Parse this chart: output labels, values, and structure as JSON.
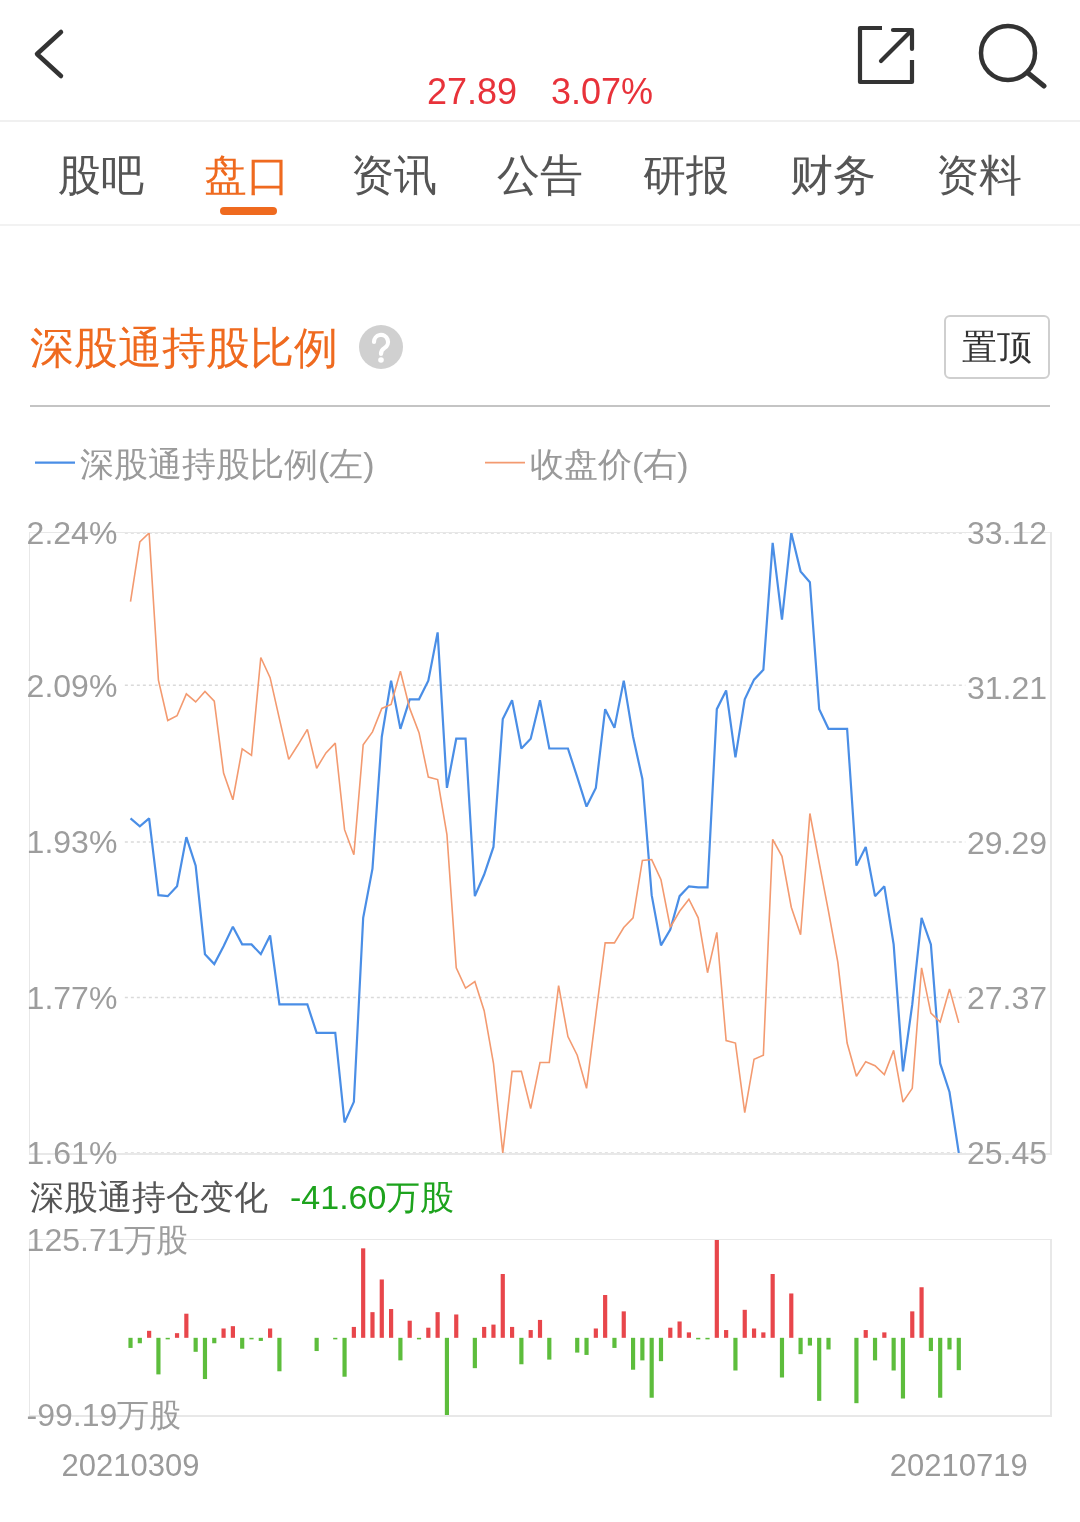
{
  "chart_data": [
    {
      "type": "other",
      "annotations": [
        "27.89",
        "3.07%",
        "股吧",
        "盘口",
        "资讯",
        "公告",
        "研报",
        "财务",
        "资料"
      ]
    },
    {
      "type": "line",
      "title": "深股通持股比例",
      "annotations": [
        "置顶"
      ],
      "categories": [
        "20210309",
        null,
        null,
        null,
        null,
        null,
        null,
        null,
        null,
        null,
        null,
        null,
        null,
        null,
        null,
        null,
        null,
        null,
        null,
        null,
        null,
        null,
        null,
        null,
        null,
        null,
        null,
        null,
        null,
        null,
        null,
        null,
        null,
        null,
        null,
        null,
        null,
        null,
        null,
        null,
        null,
        null,
        null,
        null,
        null,
        null,
        null,
        null,
        null,
        null,
        null,
        null,
        null,
        null,
        null,
        null,
        null,
        null,
        null,
        null,
        null,
        null,
        null,
        null,
        null,
        null,
        null,
        null,
        null,
        null,
        null,
        null,
        null,
        null,
        null,
        null,
        null,
        null,
        null,
        null,
        null,
        null,
        null,
        null,
        null,
        null,
        null,
        null,
        null,
        "20210719"
      ],
      "series": [
        {
          "name": "深股通持股比例(左)",
          "color": "#4a8ee6",
          "values": [
            1.95,
            1.942,
            1.95,
            1.872,
            1.871,
            1.881,
            1.931,
            1.902,
            1.812,
            1.802,
            1.82,
            1.84,
            1.822,
            1.822,
            1.812,
            1.831,
            1.761,
            1.761,
            1.761,
            1.761,
            1.732,
            1.732,
            1.732,
            1.641,
            1.662,
            1.849,
            1.899,
            2.033,
            2.09,
            2.041,
            2.071,
            2.071,
            2.09,
            2.139,
            1.981,
            2.031,
            2.031,
            1.871,
            1.893,
            1.921,
            2.051,
            2.07,
            2.021,
            2.031,
            2.07,
            2.021,
            2.021,
            2.021,
            1.992,
            1.962,
            1.981,
            2.061,
            2.042,
            2.09,
            2.033,
            1.99,
            1.872,
            1.821,
            1.837,
            1.871,
            1.881,
            1.88,
            1.88,
            2.061,
            2.08,
            2.012,
            2.071,
            2.091,
            2.101,
            2.23,
            2.152,
            2.24,
            2.201,
            2.19,
            2.061,
            2.041,
            2.041,
            2.041,
            1.902,
            1.921,
            1.871,
            1.881,
            1.822,
            1.693,
            1.761,
            1.849,
            1.822,
            1.701,
            1.672,
            1.61
          ]
        },
        {
          "name": "收盘价(右)",
          "color": "#f39a70",
          "axis": "y2",
          "values": [
            32.27,
            33.01,
            33.12,
            31.3,
            30.8,
            30.86,
            31.13,
            31.03,
            31.16,
            31.04,
            30.15,
            29.82,
            30.45,
            30.37,
            31.58,
            31.33,
            30.82,
            30.32,
            30.5,
            30.69,
            30.21,
            30.4,
            30.52,
            29.45,
            29.14,
            30.5,
            30.66,
            30.95,
            31.0,
            31.41,
            30.95,
            30.65,
            30.1,
            30.07,
            29.39,
            27.74,
            27.49,
            27.57,
            27.21,
            26.56,
            25.45,
            26.46,
            26.46,
            26.0,
            26.57,
            26.57,
            27.52,
            26.89,
            26.66,
            26.25,
            27.16,
            28.05,
            28.05,
            28.24,
            28.36,
            29.07,
            29.08,
            28.83,
            28.24,
            28.44,
            28.59,
            28.36,
            27.68,
            28.18,
            26.84,
            26.81,
            25.95,
            26.61,
            26.66,
            29.33,
            29.12,
            28.49,
            28.15,
            29.65,
            29.04,
            28.44,
            27.81,
            26.81,
            26.4,
            26.58,
            26.53,
            26.42,
            26.72,
            26.08,
            26.25,
            27.74,
            27.18,
            27.07,
            27.48,
            27.06
          ]
        }
      ],
      "ylim": [
        1.61,
        2.24
      ],
      "yticks": [
        {
          "value": 1.61,
          "label": "1.61%"
        },
        {
          "value": 1.768,
          "label": "1.77%"
        },
        {
          "value": 1.926,
          "label": "1.93%"
        },
        {
          "value": 2.0852,
          "label": "2.09%"
        },
        {
          "value": 2.24,
          "label": "2.24%"
        }
      ],
      "y2lim": [
        25.45,
        33.12
      ],
      "y2ticks": [
        25.45,
        27.37,
        29.29,
        31.21,
        33.12
      ],
      "grid": "y",
      "legend": "top left",
      "tick_labels": "y"
    },
    {
      "type": "bar",
      "title": "深股通持仓变化",
      "subtitle": "-41.60万股",
      "categories": [
        "20210309",
        null,
        null,
        null,
        null,
        null,
        null,
        null,
        null,
        null,
        null,
        null,
        null,
        null,
        null,
        null,
        null,
        null,
        null,
        null,
        null,
        null,
        null,
        null,
        null,
        null,
        null,
        null,
        null,
        null,
        null,
        null,
        null,
        null,
        null,
        null,
        null,
        null,
        null,
        null,
        null,
        null,
        null,
        null,
        null,
        null,
        null,
        null,
        null,
        null,
        null,
        null,
        null,
        null,
        null,
        null,
        null,
        null,
        null,
        null,
        null,
        null,
        null,
        null,
        null,
        null,
        null,
        null,
        null,
        null,
        null,
        null,
        null,
        null,
        null,
        null,
        null,
        null,
        null,
        null,
        null,
        null,
        null,
        null,
        null,
        null,
        null,
        null,
        null,
        "20210719"
      ],
      "values": [
        -13,
        -7,
        9,
        -47,
        -2,
        6,
        31,
        -18,
        -53,
        -7,
        12,
        15,
        -14,
        -2,
        -4,
        12,
        -43,
        null,
        null,
        null,
        -17,
        null,
        -2,
        -50,
        14,
        115,
        33,
        75,
        37,
        -29,
        22,
        -2,
        13,
        33,
        -99.19,
        30,
        null,
        -39,
        14,
        17,
        82,
        14,
        -34,
        10,
        23,
        -28,
        null,
        null,
        -19,
        -22,
        12,
        55,
        -13,
        34,
        -41,
        -29,
        -77,
        -30,
        13,
        21,
        7,
        -2,
        -2,
        125.71,
        10,
        -42,
        36,
        12,
        7,
        82,
        -51,
        57,
        -21,
        -10,
        -81,
        -15,
        null,
        null,
        -84,
        10,
        -29,
        7,
        -42,
        -78,
        34,
        65,
        -17,
        -77,
        -15,
        -41.6
      ],
      "colors": [
        "#5dbd3c",
        "#5dbd3c",
        "#e8464b",
        "#5dbd3c",
        "#5dbd3c",
        "#e8464b",
        "#e8464b",
        "#5dbd3c",
        "#5dbd3c",
        "#5dbd3c",
        "#e8464b",
        "#e8464b",
        "#5dbd3c",
        "#5dbd3c",
        "#5dbd3c",
        "#e8464b",
        "#5dbd3c",
        null,
        null,
        null,
        "#5dbd3c",
        null,
        "#5dbd3c",
        "#5dbd3c",
        "#e8464b",
        "#e8464b",
        "#e8464b",
        "#e8464b",
        "#e8464b",
        "#5dbd3c",
        "#e8464b",
        "#5dbd3c",
        "#e8464b",
        "#e8464b",
        "#5dbd3c",
        "#e8464b",
        null,
        "#5dbd3c",
        "#e8464b",
        "#e8464b",
        "#e8464b",
        "#e8464b",
        "#5dbd3c",
        "#e8464b",
        "#e8464b",
        "#5dbd3c",
        null,
        null,
        "#5dbd3c",
        "#5dbd3c",
        "#e8464b",
        "#e8464b",
        "#5dbd3c",
        "#e8464b",
        "#5dbd3c",
        "#5dbd3c",
        "#5dbd3c",
        "#5dbd3c",
        "#e8464b",
        "#e8464b",
        "#e8464b",
        "#5dbd3c",
        "#5dbd3c",
        "#e8464b",
        "#e8464b",
        "#5dbd3c",
        "#e8464b",
        "#e8464b",
        "#e8464b",
        "#e8464b",
        "#5dbd3c",
        "#e8464b",
        "#5dbd3c",
        "#5dbd3c",
        "#5dbd3c",
        "#5dbd3c",
        null,
        null,
        "#5dbd3c",
        "#e8464b",
        "#5dbd3c",
        "#e8464b",
        "#5dbd3c",
        "#5dbd3c",
        "#e8464b",
        "#e8464b",
        "#5dbd3c",
        "#5dbd3c",
        "#5dbd3c",
        "#5dbd3c"
      ],
      "ylim": [
        -99.19,
        125.71
      ],
      "yticks": [
        {
          "value": 125.71,
          "label": "125.71万股"
        },
        {
          "value": -99.19,
          "label": "-99.19万股"
        }
      ]
    }
  ]
}
